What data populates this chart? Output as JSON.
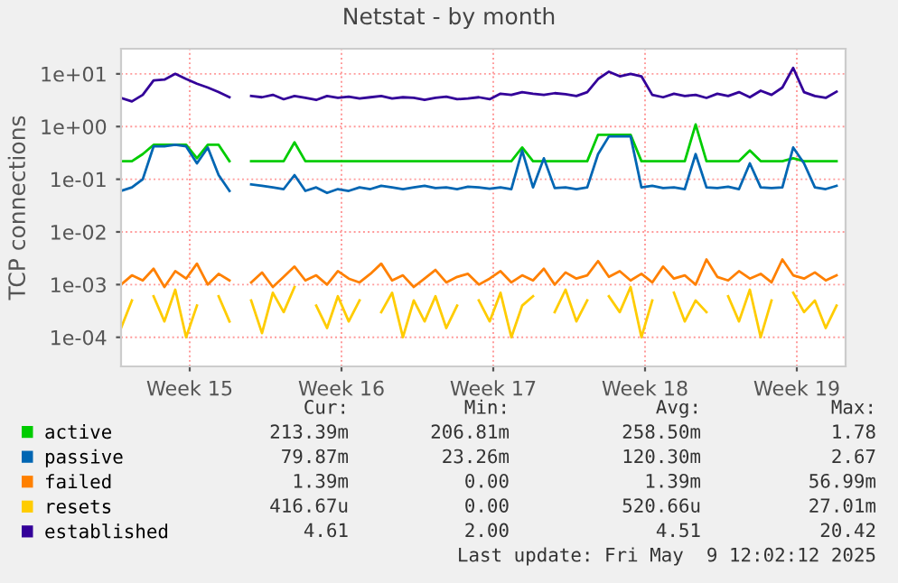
{
  "chart_data": {
    "type": "line",
    "title": "Netstat - by month",
    "ylabel": "TCP connections",
    "log": "y",
    "grid": true,
    "legend": "bottom",
    "marker": "none",
    "line_style": "solid",
    "xlim": [
      "2025-04-06T02:00",
      "2025-05-09T12:00"
    ],
    "ylim": [
      2.8e-05,
      30
    ],
    "xticks": [
      {
        "value": "2025-04-09T06:00",
        "label": "Week 15"
      },
      {
        "value": "2025-04-16T06:00",
        "label": "Week 16"
      },
      {
        "value": "2025-04-23T06:00",
        "label": "Week 17"
      },
      {
        "value": "2025-04-30T06:00",
        "label": "Week 18"
      },
      {
        "value": "2025-05-07T06:00",
        "label": "Week 19"
      }
    ],
    "yticks": [
      {
        "value": 0.0001,
        "label": "1e-04"
      },
      {
        "value": 0.001,
        "label": "1e-03"
      },
      {
        "value": 0.01,
        "label": "1e-02"
      },
      {
        "value": 0.1,
        "label": "1e-01"
      },
      {
        "value": 1,
        "label": "1e+00"
      },
      {
        "value": 10,
        "label": "1e+01"
      }
    ],
    "x": [
      "2025-04-06T02:00",
      "2025-04-06T14:00",
      "2025-04-07T02:00",
      "2025-04-07T14:00",
      "2025-04-08T02:00",
      "2025-04-08T14:00",
      "2025-04-09T02:00",
      "2025-04-09T14:00",
      "2025-04-10T02:00",
      "2025-04-10T14:00",
      "2025-04-11T02:00",
      "2025-04-11T14:00",
      "2025-04-12T02:00",
      "2025-04-12T14:00",
      "2025-04-13T02:00",
      "2025-04-13T14:00",
      "2025-04-14T02:00",
      "2025-04-14T14:00",
      "2025-04-15T02:00",
      "2025-04-15T14:00",
      "2025-04-16T02:00",
      "2025-04-16T14:00",
      "2025-04-17T02:00",
      "2025-04-17T14:00",
      "2025-04-18T02:00",
      "2025-04-18T14:00",
      "2025-04-19T02:00",
      "2025-04-19T14:00",
      "2025-04-20T02:00",
      "2025-04-20T14:00",
      "2025-04-21T02:00",
      "2025-04-21T14:00",
      "2025-04-22T02:00",
      "2025-04-22T14:00",
      "2025-04-23T02:00",
      "2025-04-23T14:00",
      "2025-04-24T02:00",
      "2025-04-24T14:00",
      "2025-04-25T02:00",
      "2025-04-25T14:00",
      "2025-04-26T02:00",
      "2025-04-26T14:00",
      "2025-04-27T02:00",
      "2025-04-27T14:00",
      "2025-04-28T02:00",
      "2025-04-28T14:00",
      "2025-04-29T02:00",
      "2025-04-29T14:00",
      "2025-04-30T02:00",
      "2025-04-30T14:00",
      "2025-05-01T02:00",
      "2025-05-01T14:00",
      "2025-05-02T02:00",
      "2025-05-02T14:00",
      "2025-05-03T02:00",
      "2025-05-03T14:00",
      "2025-05-04T02:00",
      "2025-05-04T14:00",
      "2025-05-05T02:00",
      "2025-05-05T14:00",
      "2025-05-06T02:00",
      "2025-05-06T14:00",
      "2025-05-07T02:00",
      "2025-05-07T14:00",
      "2025-05-08T02:00",
      "2025-05-08T14:00",
      "2025-05-09T02:00"
    ],
    "series": [
      {
        "name": "active",
        "color": "#00cc00",
        "values": [
          0.22,
          0.22,
          0.3,
          0.45,
          0.45,
          0.45,
          0.45,
          0.25,
          0.45,
          0.45,
          0.22,
          null,
          0.22,
          0.22,
          0.22,
          0.22,
          0.5,
          0.22,
          0.22,
          0.22,
          0.22,
          0.22,
          0.22,
          0.22,
          0.22,
          0.22,
          0.22,
          0.22,
          0.22,
          0.22,
          0.22,
          0.22,
          0.22,
          0.22,
          0.22,
          0.22,
          0.22,
          0.4,
          0.22,
          0.22,
          0.22,
          0.22,
          0.22,
          0.22,
          0.7,
          0.7,
          0.7,
          0.7,
          0.22,
          0.22,
          0.22,
          0.22,
          0.22,
          1.1,
          0.22,
          0.22,
          0.22,
          0.22,
          0.35,
          0.22,
          0.22,
          0.22,
          0.25,
          0.22,
          0.22,
          0.22,
          0.22
        ]
      },
      {
        "name": "passive",
        "color": "#0066b3",
        "values": [
          0.06,
          0.07,
          0.1,
          0.42,
          0.42,
          0.45,
          0.42,
          0.2,
          0.4,
          0.12,
          0.06,
          null,
          0.08,
          0.075,
          0.07,
          0.065,
          0.12,
          0.06,
          0.07,
          0.055,
          0.065,
          0.06,
          0.07,
          0.065,
          0.075,
          0.07,
          0.065,
          0.07,
          0.075,
          0.068,
          0.07,
          0.065,
          0.072,
          0.07,
          0.066,
          0.07,
          0.065,
          0.35,
          0.07,
          0.25,
          0.068,
          0.07,
          0.065,
          0.07,
          0.3,
          0.65,
          0.65,
          0.65,
          0.07,
          0.075,
          0.068,
          0.07,
          0.065,
          0.3,
          0.07,
          0.068,
          0.072,
          0.065,
          0.2,
          0.07,
          0.068,
          0.07,
          0.4,
          0.2,
          0.07,
          0.065,
          0.075
        ]
      },
      {
        "name": "failed",
        "color": "#ff8000",
        "values": [
          0.001,
          0.0015,
          0.0012,
          0.002,
          0.0009,
          0.0018,
          0.0013,
          0.0025,
          0.001,
          0.0016,
          0.0012,
          null,
          0.0011,
          0.0017,
          0.0009,
          0.0014,
          0.0022,
          0.0012,
          0.0015,
          0.001,
          0.0018,
          0.0013,
          0.0011,
          0.0016,
          0.0025,
          0.0012,
          0.0015,
          0.0009,
          0.0013,
          0.0019,
          0.0011,
          0.0014,
          0.0016,
          0.001,
          0.0013,
          0.0018,
          0.0011,
          0.0015,
          0.0012,
          0.002,
          0.001,
          0.0017,
          0.0013,
          0.0015,
          0.0028,
          0.0014,
          0.0018,
          0.0012,
          0.0016,
          0.0011,
          0.0022,
          0.0013,
          0.0015,
          0.001,
          0.003,
          0.0014,
          0.0012,
          0.0018,
          0.0013,
          0.0016,
          0.0011,
          0.003,
          0.0015,
          0.0013,
          0.0017,
          0.0012,
          0.0015
        ]
      },
      {
        "name": "resets",
        "color": "#ffcc00",
        "values": [
          0.00015,
          0.0005,
          null,
          0.0006,
          0.0002,
          0.0008,
          0.0001,
          0.0004,
          null,
          0.0006,
          0.0002,
          null,
          0.0005,
          0.00012,
          0.0007,
          0.0003,
          0.0009,
          null,
          0.0004,
          0.00015,
          0.0006,
          0.0002,
          0.0005,
          null,
          0.0003,
          0.0007,
          0.0001,
          0.0005,
          0.0002,
          0.0006,
          0.00015,
          0.0004,
          null,
          0.0005,
          0.0002,
          0.0007,
          0.0001,
          0.0004,
          0.0006,
          null,
          0.0003,
          0.0008,
          0.0002,
          0.0005,
          null,
          0.0006,
          0.0003,
          0.0009,
          0.0001,
          0.0005,
          null,
          0.0007,
          0.0002,
          0.0005,
          0.0003,
          null,
          0.0006,
          0.0002,
          0.0008,
          0.0001,
          0.0005,
          null,
          0.0007,
          0.0003,
          0.0005,
          0.00015,
          0.0004
        ]
      },
      {
        "name": "established",
        "color": "#330099",
        "values": [
          3.5,
          3.0,
          4.0,
          7.5,
          7.8,
          10,
          8,
          6.5,
          5.5,
          4.5,
          3.6,
          null,
          3.8,
          3.6,
          4.0,
          3.3,
          3.8,
          3.5,
          3.2,
          3.8,
          3.5,
          3.7,
          3.4,
          3.6,
          3.8,
          3.4,
          3.6,
          3.5,
          3.2,
          3.5,
          3.7,
          3.3,
          3.4,
          3.6,
          3.3,
          4.2,
          4.0,
          4.5,
          4.2,
          4.0,
          4.3,
          4.1,
          3.8,
          4.5,
          8,
          11,
          9,
          10,
          9,
          4,
          3.6,
          4.2,
          3.8,
          4.0,
          3.5,
          4.2,
          3.8,
          4.5,
          3.6,
          4.8,
          4.0,
          5.5,
          13,
          4.5,
          3.8,
          3.5,
          4.6
        ]
      }
    ],
    "annotations": [
      "Cur:",
      "Min:",
      "Avg:",
      "Max:",
      "213.39m",
      "206.81m",
      "258.50m",
      "1.78",
      "79.87m",
      "23.26m",
      "120.30m",
      "2.67",
      "1.39m",
      "0.00",
      "1.39m",
      "56.99m",
      "416.67u",
      "0.00",
      "520.66u",
      "27.01m",
      "4.61",
      "2.00",
      "4.51",
      "20.42",
      "Last update: Fri May  9 12:02:12 2025"
    ]
  }
}
